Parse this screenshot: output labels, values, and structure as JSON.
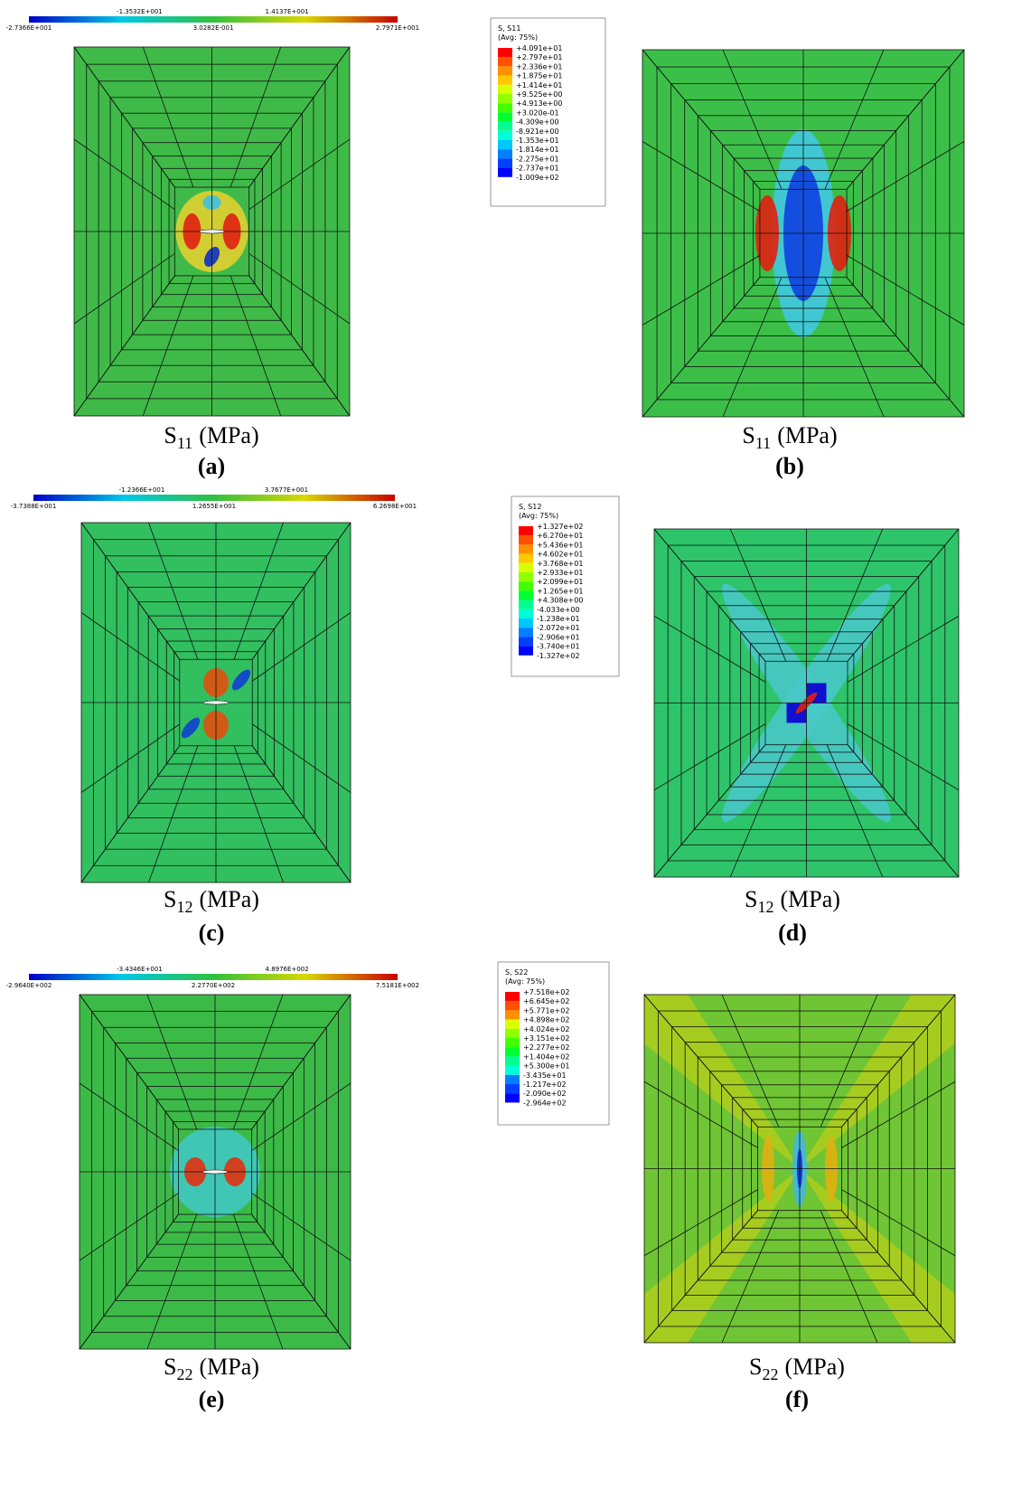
{
  "panels": [
    {
      "label": "(a)",
      "caption": {
        "symbol": "S",
        "subscript": "11",
        "unit": "(MPa)"
      },
      "colorbar": {
        "upper_labels": [
          "-1.3532E+001",
          "1.4137E+001"
        ],
        "lower_labels": [
          "-2.7366E+001",
          "3.0282E-001",
          "2.7971E+001"
        ]
      }
    },
    {
      "label": "(b)",
      "caption": {
        "symbol": "S",
        "subscript": "11",
        "unit": "(MPa)"
      },
      "legend": {
        "title": "S, S11",
        "subtitle": "(Avg: 75%)",
        "values": [
          "+4.091e+01",
          "+2.797e+01",
          "+2.336e+01",
          "+1.875e+01",
          "+1.414e+01",
          "+9.525e+00",
          "+4.913e+00",
          "+3.020e-01",
          "-4.309e+00",
          "-8.921e+00",
          "-1.353e+01",
          "-1.814e+01",
          "-2.275e+01",
          "-2.737e+01",
          "-1.009e+02"
        ]
      }
    },
    {
      "label": "(c)",
      "caption": {
        "symbol": "S",
        "subscript": "12",
        "unit": "(MPa)"
      },
      "colorbar": {
        "upper_labels": [
          "-1.2366E+001",
          "3.7677E+001"
        ],
        "lower_labels": [
          "-3.7388E+001",
          "1.2655E+001",
          "6.2698E+001"
        ]
      }
    },
    {
      "label": "(d)",
      "caption": {
        "symbol": "S",
        "subscript": "12",
        "unit": "(MPa)"
      },
      "legend": {
        "title": "S, S12",
        "subtitle": "(Avg: 75%)",
        "values": [
          "+1.327e+02",
          "+6.270e+01",
          "+5.436e+01",
          "+4.602e+01",
          "+3.768e+01",
          "+2.933e+01",
          "+2.099e+01",
          "+1.265e+01",
          "+4.308e+00",
          "-4.033e+00",
          "-1.238e+01",
          "-2.072e+01",
          "-2.906e+01",
          "-3.740e+01",
          "-1.327e+02"
        ]
      }
    },
    {
      "label": "(e)",
      "caption": {
        "symbol": "S",
        "subscript": "22",
        "unit": "(MPa)"
      },
      "colorbar": {
        "upper_labels": [
          "-3.4346E+001",
          "4.8976E+002"
        ],
        "lower_labels": [
          "-2.9640E+002",
          "2.2770E+002",
          "7.5181E+002"
        ]
      }
    },
    {
      "label": "(f)",
      "caption": {
        "symbol": "S",
        "subscript": "22",
        "unit": "(MPa)"
      },
      "legend": {
        "title": "S, S22",
        "subtitle": "(Avg: 75%)",
        "values": [
          "+7.518e+02",
          "+6.645e+02",
          "+5.771e+02",
          "+4.898e+02",
          "+4.024e+02",
          "+3.151e+02",
          "+2.277e+02",
          "+1.404e+02",
          "+5.300e+01",
          "-3.435e+01",
          "-1.217e+02",
          "-2.090e+02",
          "-2.964e+02"
        ]
      }
    }
  ]
}
